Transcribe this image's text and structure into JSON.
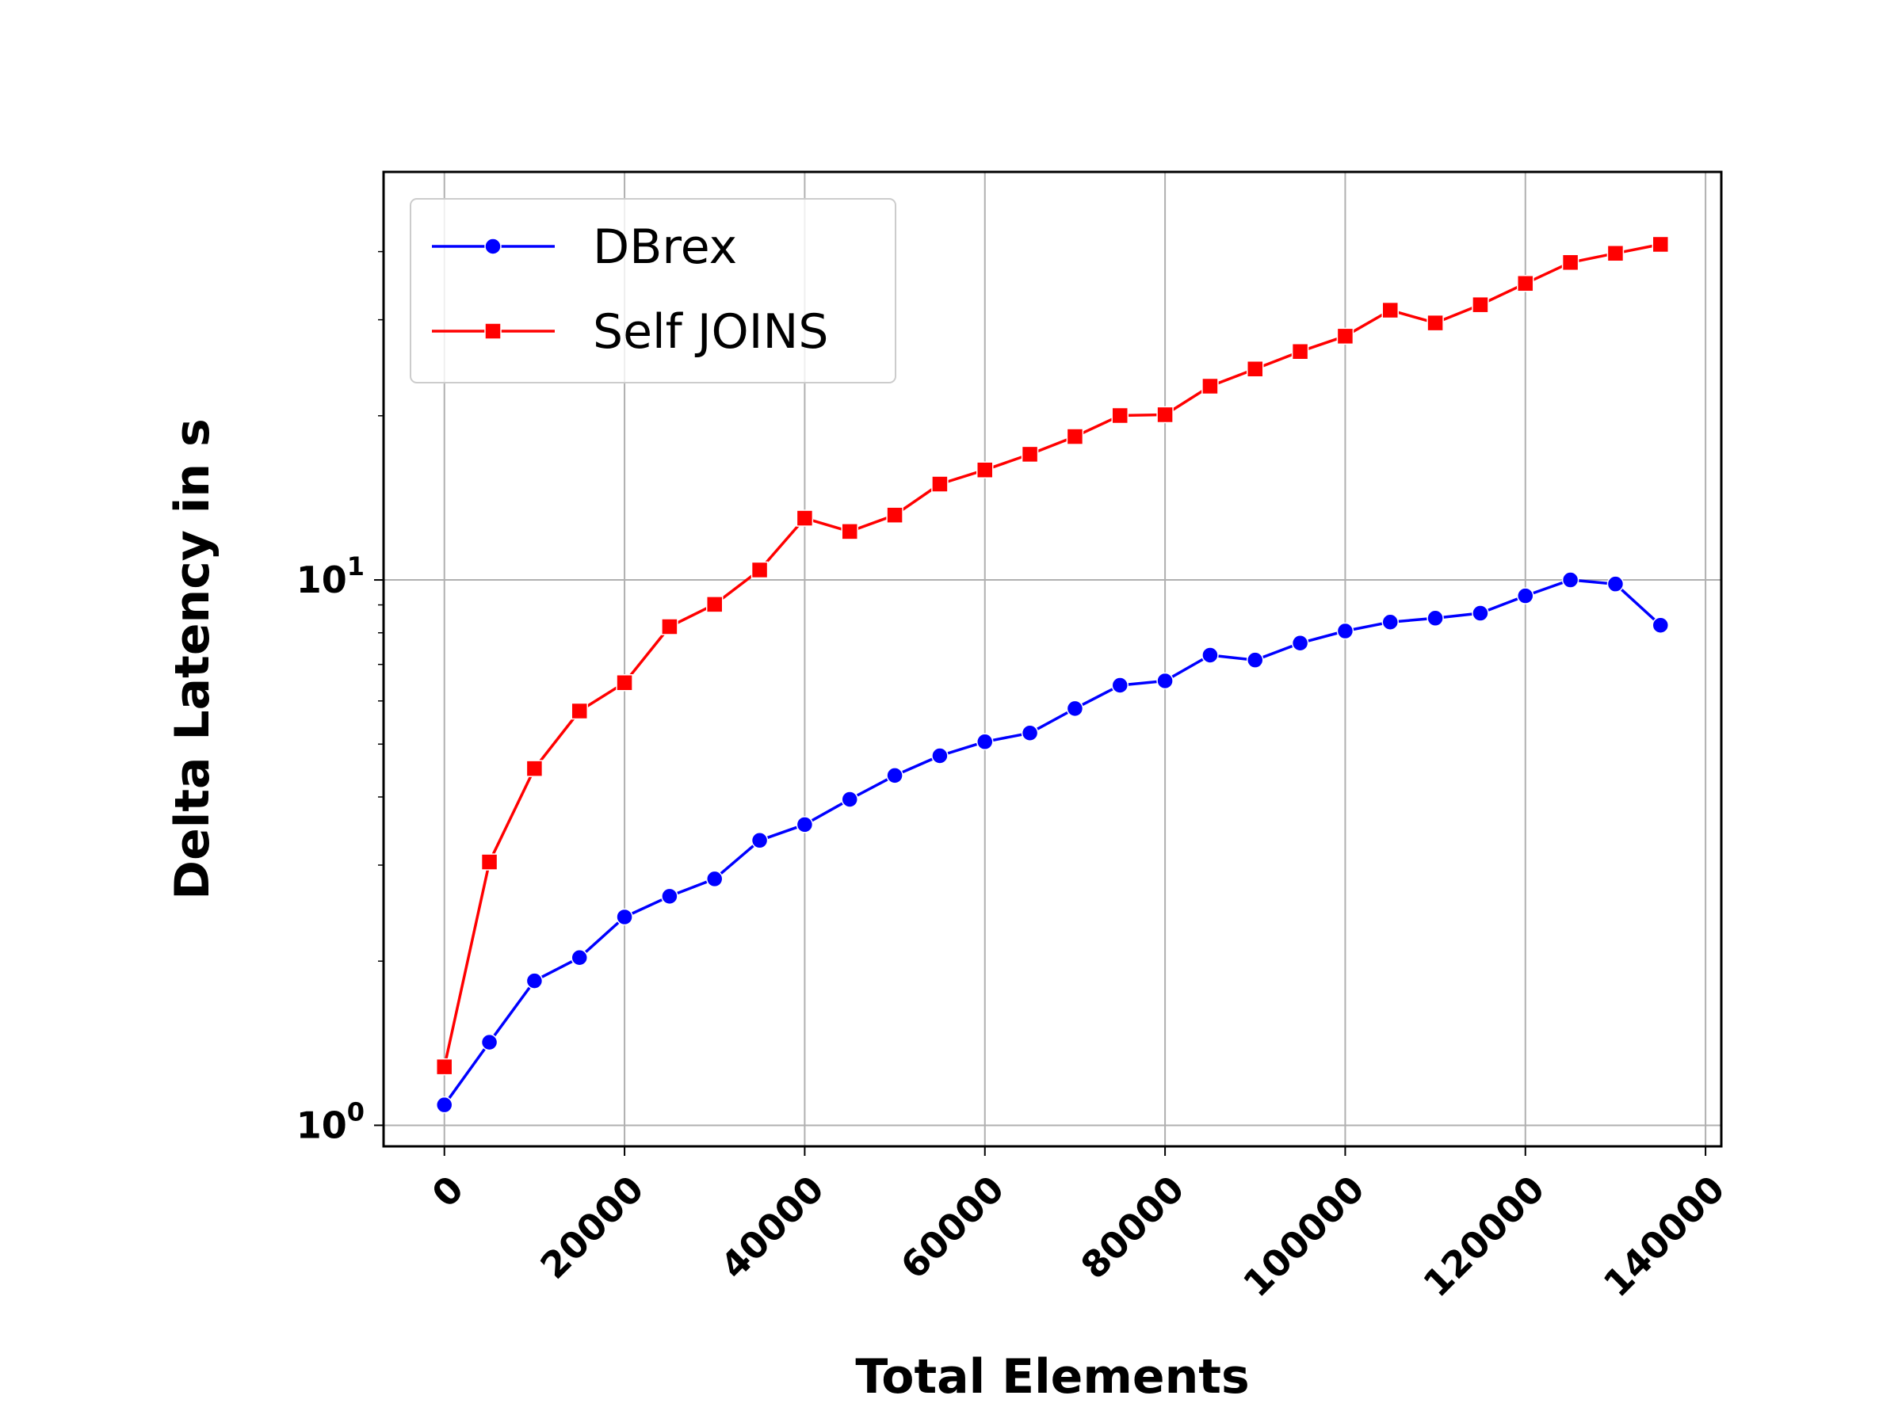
{
  "chart_data": {
    "type": "line",
    "xlabel": "Total Elements",
    "ylabel": "Delta Latency in s",
    "xlim": [
      -6750,
      141750
    ],
    "ylim": [
      0.915,
      56
    ],
    "yscale": "log",
    "grid": true,
    "legend_position": "top-left",
    "x_ticks": [
      0,
      20000,
      40000,
      60000,
      80000,
      100000,
      120000,
      140000
    ],
    "x_tick_labels": [
      "0",
      "20000",
      "40000",
      "60000",
      "80000",
      "100000",
      "120000",
      "140000"
    ],
    "y_ticks": [
      {
        "value": 1,
        "base": "10",
        "exp": "0"
      },
      {
        "value": 10,
        "base": "10",
        "exp": "1"
      }
    ],
    "y_minor_ticks": [
      2,
      3,
      4,
      5,
      6,
      7,
      8,
      9,
      20,
      30,
      40
    ],
    "x": [
      0,
      5000,
      10000,
      15000,
      20000,
      25000,
      30000,
      35000,
      40000,
      45000,
      50000,
      55000,
      60000,
      65000,
      70000,
      75000,
      80000,
      85000,
      90000,
      95000,
      100000,
      105000,
      110000,
      115000,
      120000,
      125000,
      130000,
      135000
    ],
    "series": [
      {
        "name": "DBrex",
        "color": "#0000ff",
        "marker": "circle",
        "values": [
          1.09,
          1.42,
          1.84,
          2.03,
          2.41,
          2.63,
          2.83,
          3.33,
          3.56,
          3.96,
          4.38,
          4.76,
          5.05,
          5.24,
          5.81,
          6.41,
          6.53,
          7.28,
          7.13,
          7.66,
          8.06,
          8.37,
          8.51,
          8.69,
          9.35,
          10.0,
          9.83,
          8.26
        ]
      },
      {
        "name": "Self JOINS",
        "color": "#ff0000",
        "marker": "square",
        "values": [
          1.28,
          3.04,
          4.51,
          5.75,
          6.48,
          8.21,
          9.02,
          10.43,
          12.98,
          12.27,
          13.15,
          14.99,
          15.91,
          17.0,
          18.32,
          20.02,
          20.09,
          22.66,
          24.37,
          26.23,
          27.99,
          31.23,
          29.6,
          31.96,
          34.97,
          38.21,
          39.71,
          41.24
        ]
      }
    ]
  }
}
